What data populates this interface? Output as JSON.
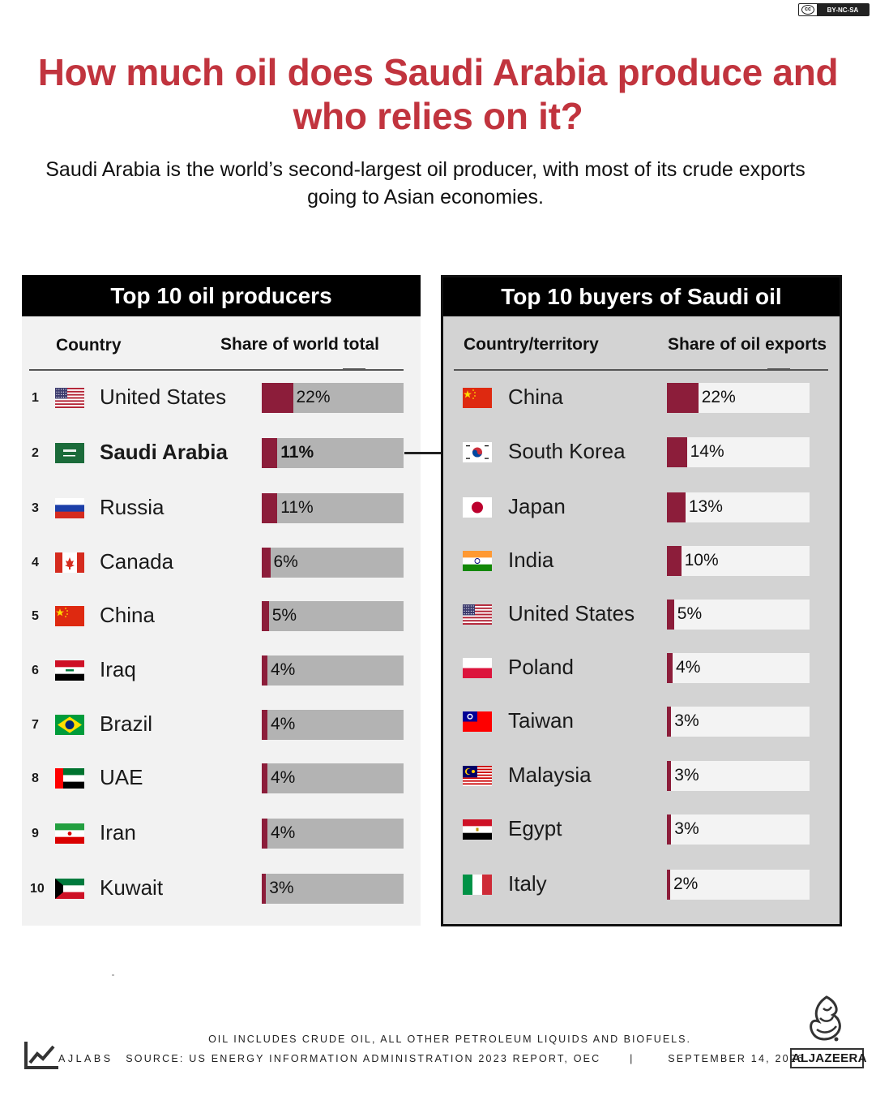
{
  "license": "BY-NC-SA",
  "title": "How much oil does Saudi Arabia produce and who relies on it?",
  "subtitle": "Saudi Arabia is the world’s second-largest oil producer, with most of its crude exports going to Asian economies.",
  "colors": {
    "title": "#c1343e",
    "bar_fill": "#8c1d3a",
    "left_track": "#b3b3b3",
    "right_track": "#f3f3f3"
  },
  "chart_data": [
    {
      "type": "bar",
      "title": "Top 10 oil producers",
      "columns": [
        "Country",
        "Share of world total"
      ],
      "highlight": "Saudi Arabia",
      "max_value": 100,
      "rows": [
        {
          "rank": "1",
          "name": "United States",
          "flag": "us-flag",
          "value": 22,
          "label": "22%"
        },
        {
          "rank": "2",
          "name": "Saudi Arabia",
          "flag": "saudi-flag",
          "value": 11,
          "label": "11%"
        },
        {
          "rank": "3",
          "name": "Russia",
          "flag": "russia-flag",
          "value": 11,
          "label": "11%"
        },
        {
          "rank": "4",
          "name": "Canada",
          "flag": "canada-flag",
          "value": 6,
          "label": "6%"
        },
        {
          "rank": "5",
          "name": "China",
          "flag": "china-flag",
          "value": 5,
          "label": "5%"
        },
        {
          "rank": "6",
          "name": "Iraq",
          "flag": "iraq-flag",
          "value": 4,
          "label": "4%"
        },
        {
          "rank": "7",
          "name": "Brazil",
          "flag": "brazil-flag",
          "value": 4,
          "label": "4%"
        },
        {
          "rank": "8",
          "name": "UAE",
          "flag": "uae-flag",
          "value": 4,
          "label": "4%"
        },
        {
          "rank": "9",
          "name": "Iran",
          "flag": "iran-flag",
          "value": 4,
          "label": "4%"
        },
        {
          "rank": "10",
          "name": "Kuwait",
          "flag": "kuwait-flag",
          "value": 3,
          "label": "3%"
        }
      ]
    },
    {
      "type": "bar",
      "title": "Top 10 buyers of Saudi oil",
      "columns": [
        "Country/territory",
        "Share of oil exports"
      ],
      "max_value": 100,
      "rows": [
        {
          "name": "China",
          "flag": "china-flag",
          "value": 22,
          "label": "22%"
        },
        {
          "name": "South Korea",
          "flag": "south-korea-flag",
          "value": 14,
          "label": "14%"
        },
        {
          "name": "Japan",
          "flag": "japan-flag",
          "value": 13,
          "label": "13%"
        },
        {
          "name": "India",
          "flag": "india-flag",
          "value": 10,
          "label": "10%"
        },
        {
          "name": "United States",
          "flag": "us-flag",
          "value": 5,
          "label": "5%"
        },
        {
          "name": "Poland",
          "flag": "poland-flag",
          "value": 4,
          "label": "4%"
        },
        {
          "name": "Taiwan",
          "flag": "taiwan-flag",
          "value": 3,
          "label": "3%"
        },
        {
          "name": "Malaysia",
          "flag": "malaysia-flag",
          "value": 3,
          "label": "3%"
        },
        {
          "name": "Egypt",
          "flag": "egypt-flag",
          "value": 3,
          "label": "3%"
        },
        {
          "name": "Italy",
          "flag": "italy-flag",
          "value": 2,
          "label": "2%"
        }
      ]
    }
  ],
  "footer": {
    "note": "OIL INCLUDES CRUDE OIL, ALL OTHER PETROLEUM LIQUIDS AND BIOFUELS.",
    "brand": "AJLABS",
    "source": "SOURCE:  US ENERGY INFORMATION ADMINISTRATION 2023 REPORT, OEC",
    "separator": "|",
    "date": "SEPTEMBER 14, 2026",
    "logo_text": "ALJAZEERA"
  }
}
